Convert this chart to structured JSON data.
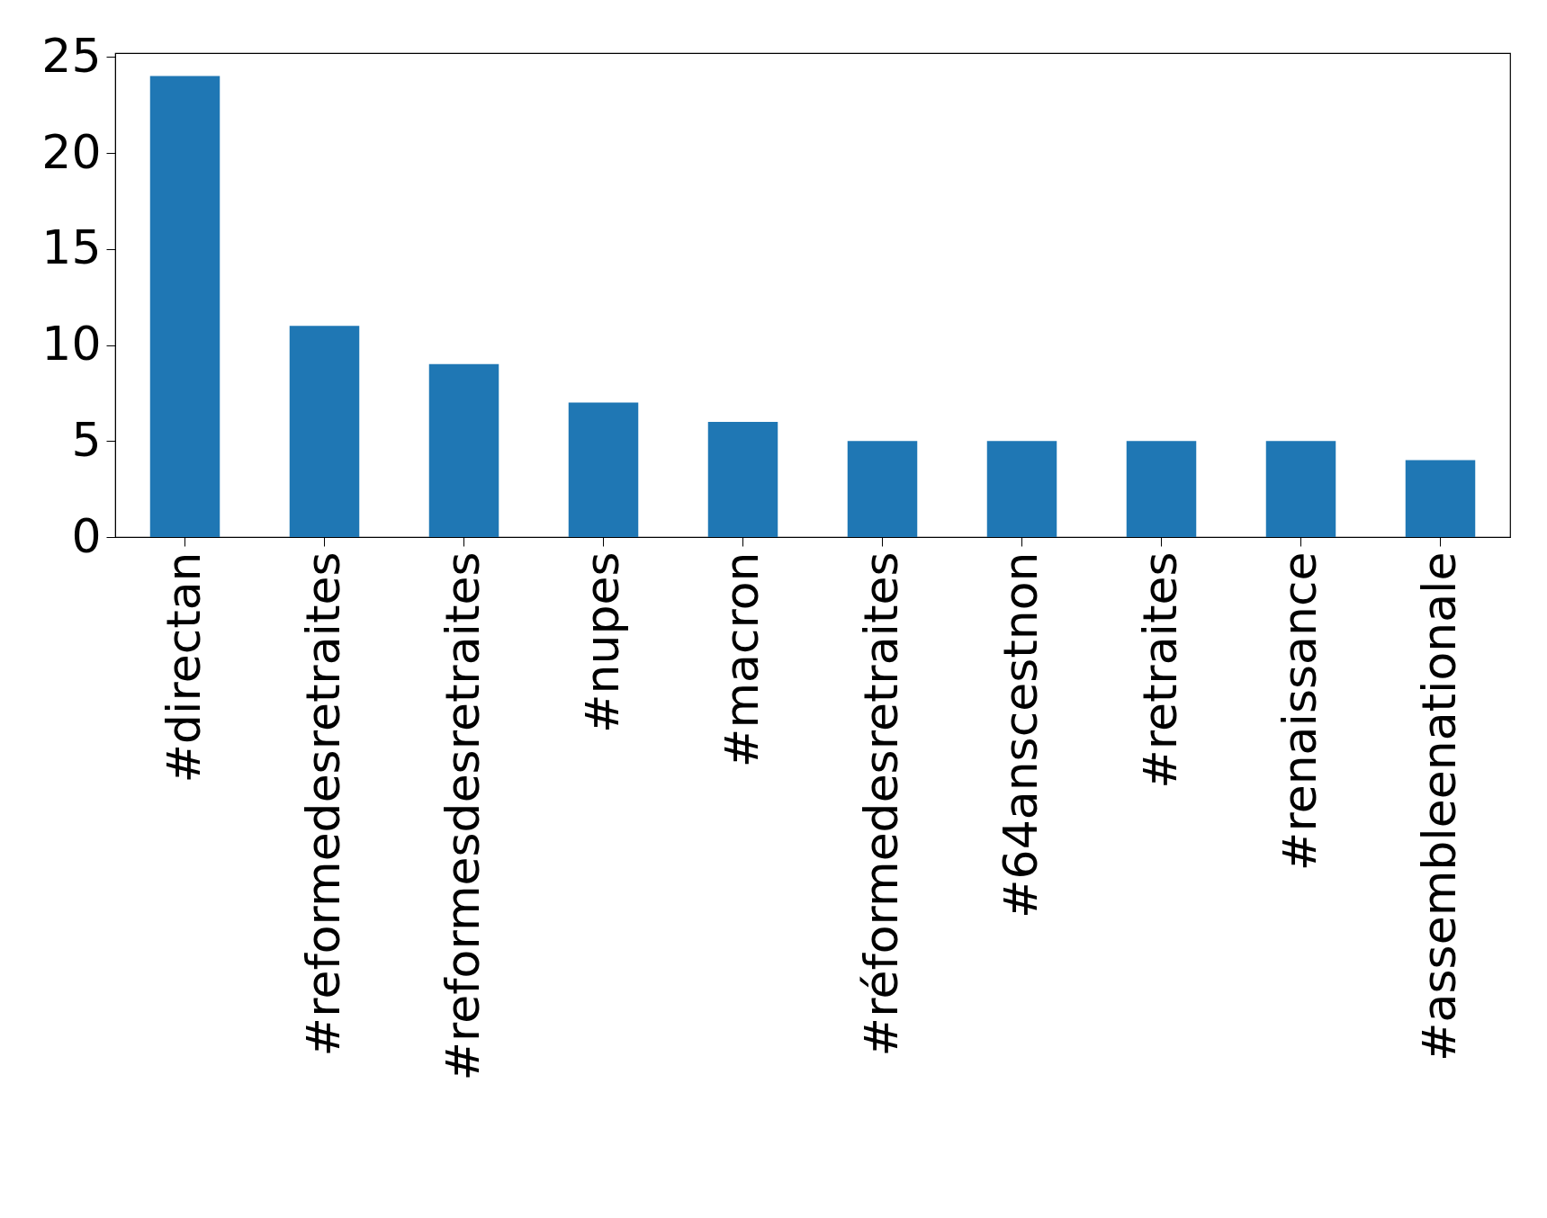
{
  "chart_data": {
    "type": "bar",
    "categories": [
      "#directan",
      "#reformedesretraites",
      "#reformesdesretraites",
      "#nupes",
      "#macron",
      "#réformedesretraites",
      "#64anscestnon",
      "#retraites",
      "#renaissance",
      "#assembleenationale"
    ],
    "values": [
      24,
      11,
      9,
      7,
      6,
      5,
      5,
      5,
      5,
      4
    ],
    "color": "#1f77b4",
    "ylim": [
      0,
      25.2
    ],
    "yticks": [
      0,
      5,
      10,
      15,
      20,
      25
    ],
    "grid": false
  }
}
